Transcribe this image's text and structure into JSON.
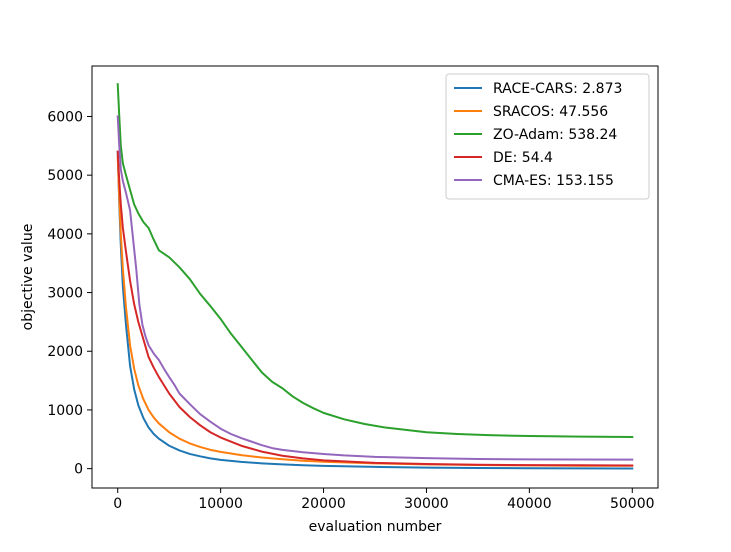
{
  "chart_data": {
    "type": "line",
    "title": "",
    "xlabel": "evaluation number",
    "ylabel": "objective value",
    "xlim": [
      -2500,
      52500
    ],
    "ylim": [
      -330,
      6860
    ],
    "xticks": [
      0,
      10000,
      20000,
      30000,
      40000,
      50000
    ],
    "yticks": [
      0,
      1000,
      2000,
      3000,
      4000,
      5000,
      6000
    ],
    "grid": false,
    "legend_position": "top-right",
    "series": [
      {
        "name": "RACE-CARS: 2.873",
        "color": "#1f77b4",
        "points": [
          [
            0,
            5400
          ],
          [
            150,
            4500
          ],
          [
            300,
            3800
          ],
          [
            500,
            3100
          ],
          [
            800,
            2450
          ],
          [
            1200,
            1750
          ],
          [
            1600,
            1350
          ],
          [
            2000,
            1080
          ],
          [
            2500,
            860
          ],
          [
            3000,
            700
          ],
          [
            3500,
            590
          ],
          [
            4000,
            510
          ],
          [
            5000,
            390
          ],
          [
            6000,
            310
          ],
          [
            7000,
            250
          ],
          [
            8000,
            210
          ],
          [
            9000,
            175
          ],
          [
            10000,
            150
          ],
          [
            12000,
            115
          ],
          [
            14000,
            90
          ],
          [
            16000,
            72
          ],
          [
            18000,
            58
          ],
          [
            20000,
            47
          ],
          [
            25000,
            30
          ],
          [
            30000,
            18
          ],
          [
            35000,
            11
          ],
          [
            40000,
            7
          ],
          [
            45000,
            5
          ],
          [
            50000,
            3
          ]
        ]
      },
      {
        "name": "SRACOS: 47.556",
        "color": "#ff7f0e",
        "points": [
          [
            0,
            5300
          ],
          [
            150,
            4600
          ],
          [
            300,
            4000
          ],
          [
            500,
            3400
          ],
          [
            800,
            2750
          ],
          [
            1200,
            2100
          ],
          [
            1600,
            1700
          ],
          [
            2000,
            1420
          ],
          [
            2500,
            1180
          ],
          [
            3000,
            1000
          ],
          [
            3500,
            870
          ],
          [
            4000,
            770
          ],
          [
            5000,
            620
          ],
          [
            6000,
            510
          ],
          [
            7000,
            430
          ],
          [
            8000,
            370
          ],
          [
            9000,
            320
          ],
          [
            10000,
            285
          ],
          [
            12000,
            230
          ],
          [
            14000,
            190
          ],
          [
            16000,
            160
          ],
          [
            18000,
            135
          ],
          [
            20000,
            118
          ],
          [
            25000,
            90
          ],
          [
            30000,
            72
          ],
          [
            35000,
            62
          ],
          [
            40000,
            55
          ],
          [
            45000,
            50
          ],
          [
            50000,
            48
          ]
        ]
      },
      {
        "name": "ZO-Adam: 538.24",
        "color": "#2ca02c",
        "points": [
          [
            0,
            6550
          ],
          [
            150,
            6000
          ],
          [
            300,
            5500
          ],
          [
            500,
            5200
          ],
          [
            800,
            5000
          ],
          [
            1200,
            4750
          ],
          [
            1600,
            4500
          ],
          [
            2000,
            4350
          ],
          [
            2500,
            4200
          ],
          [
            3000,
            4100
          ],
          [
            3500,
            3900
          ],
          [
            4000,
            3720
          ],
          [
            5000,
            3600
          ],
          [
            6000,
            3430
          ],
          [
            7000,
            3230
          ],
          [
            8000,
            2980
          ],
          [
            9000,
            2770
          ],
          [
            10000,
            2550
          ],
          [
            11000,
            2300
          ],
          [
            12000,
            2080
          ],
          [
            13000,
            1860
          ],
          [
            14000,
            1640
          ],
          [
            15000,
            1480
          ],
          [
            16000,
            1370
          ],
          [
            17000,
            1230
          ],
          [
            18000,
            1120
          ],
          [
            19000,
            1030
          ],
          [
            20000,
            950
          ],
          [
            22000,
            840
          ],
          [
            24000,
            760
          ],
          [
            26000,
            700
          ],
          [
            28000,
            660
          ],
          [
            30000,
            620
          ],
          [
            33000,
            590
          ],
          [
            36000,
            570
          ],
          [
            40000,
            555
          ],
          [
            45000,
            545
          ],
          [
            50000,
            538
          ]
        ]
      },
      {
        "name": "DE: 54.4",
        "color": "#d62728",
        "points": [
          [
            0,
            5400
          ],
          [
            150,
            4900
          ],
          [
            300,
            4500
          ],
          [
            500,
            4100
          ],
          [
            800,
            3700
          ],
          [
            1200,
            3200
          ],
          [
            1600,
            2800
          ],
          [
            2000,
            2500
          ],
          [
            2500,
            2200
          ],
          [
            3000,
            1900
          ],
          [
            3500,
            1720
          ],
          [
            4000,
            1560
          ],
          [
            5000,
            1280
          ],
          [
            6000,
            1050
          ],
          [
            7000,
            880
          ],
          [
            8000,
            740
          ],
          [
            9000,
            620
          ],
          [
            10000,
            530
          ],
          [
            12000,
            390
          ],
          [
            14000,
            290
          ],
          [
            16000,
            220
          ],
          [
            18000,
            175
          ],
          [
            20000,
            140
          ],
          [
            25000,
            98
          ],
          [
            30000,
            78
          ],
          [
            35000,
            66
          ],
          [
            40000,
            60
          ],
          [
            45000,
            57
          ],
          [
            50000,
            54
          ]
        ]
      },
      {
        "name": "CMA-ES: 153.155",
        "color": "#9467bd",
        "points": [
          [
            0,
            6000
          ],
          [
            150,
            5500
          ],
          [
            300,
            5100
          ],
          [
            500,
            4900
          ],
          [
            800,
            4700
          ],
          [
            1200,
            4400
          ],
          [
            1500,
            3900
          ],
          [
            1800,
            3400
          ],
          [
            2100,
            2800
          ],
          [
            2400,
            2450
          ],
          [
            2700,
            2250
          ],
          [
            3000,
            2100
          ],
          [
            3500,
            1960
          ],
          [
            4000,
            1850
          ],
          [
            4500,
            1700
          ],
          [
            5000,
            1560
          ],
          [
            5500,
            1430
          ],
          [
            6000,
            1280
          ],
          [
            7000,
            1100
          ],
          [
            8000,
            930
          ],
          [
            9000,
            800
          ],
          [
            10000,
            680
          ],
          [
            11000,
            590
          ],
          [
            12000,
            520
          ],
          [
            13000,
            460
          ],
          [
            14000,
            400
          ],
          [
            15000,
            350
          ],
          [
            16000,
            320
          ],
          [
            18000,
            280
          ],
          [
            20000,
            250
          ],
          [
            22000,
            225
          ],
          [
            25000,
            200
          ],
          [
            30000,
            178
          ],
          [
            35000,
            165
          ],
          [
            40000,
            158
          ],
          [
            45000,
            155
          ],
          [
            50000,
            153
          ]
        ]
      }
    ]
  }
}
